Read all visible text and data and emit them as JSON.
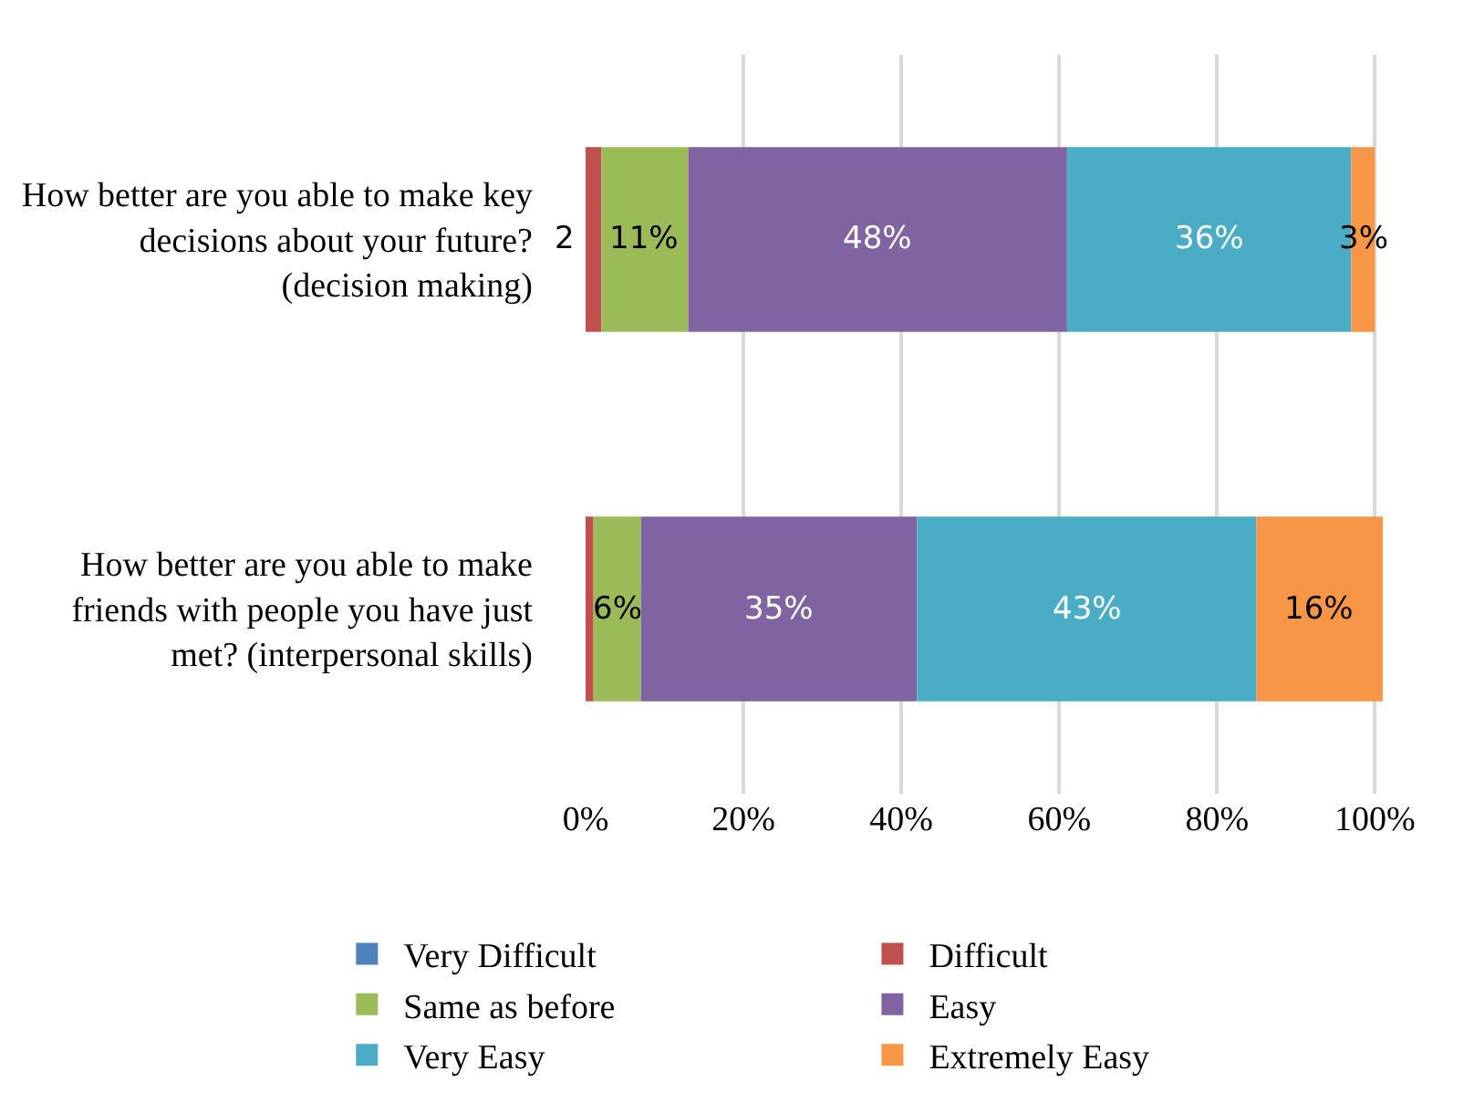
{
  "chart_data": {
    "type": "bar",
    "orientation": "horizontal",
    "stacked": true,
    "categories": [
      "How better are you able to make key decisions about your future? (decision making)",
      "How better are you able to make friends with people you have just met? (interpersonal skills)"
    ],
    "series": [
      {
        "name": "Very Difficult",
        "color": "#4f81bd",
        "values": [
          0,
          0
        ],
        "value_labels": [
          null,
          null
        ]
      },
      {
        "name": "Difficult",
        "color": "#c0504d",
        "values": [
          2,
          1
        ],
        "value_labels": [
          "2",
          null
        ]
      },
      {
        "name": "Same as before",
        "color": "#9bbb59",
        "values": [
          11,
          6
        ],
        "value_labels": [
          "11%",
          "6%"
        ]
      },
      {
        "name": "Easy",
        "color": "#8064a2",
        "values": [
          48,
          35
        ],
        "value_labels": [
          "48%",
          "35%"
        ]
      },
      {
        "name": "Very Easy",
        "color": "#4bacc6",
        "values": [
          36,
          43
        ],
        "value_labels": [
          "36%",
          "43%"
        ]
      },
      {
        "name": "Extremely Easy",
        "color": "#f79646",
        "values": [
          3,
          16
        ],
        "value_labels": [
          "3%",
          "16%"
        ]
      }
    ],
    "xlim": [
      0,
      101
    ],
    "xticks": [
      {
        "value": 0,
        "label": "0%"
      },
      {
        "value": 20,
        "label": "20%"
      },
      {
        "value": 40,
        "label": "40%"
      },
      {
        "value": 60,
        "label": "60%"
      },
      {
        "value": 80,
        "label": "80%"
      },
      {
        "value": 100,
        "label": "100%"
      }
    ],
    "grid": "x",
    "legend": "bottom"
  }
}
